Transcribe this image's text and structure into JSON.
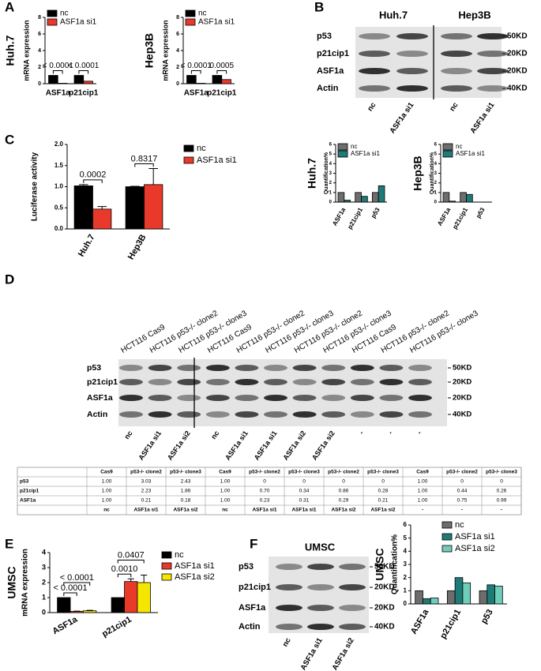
{
  "panels": [
    "A",
    "B",
    "C",
    "D",
    "E",
    "F"
  ],
  "chart_data": [
    {
      "type": "bar",
      "side_label": "Huh.7",
      "y_label": "mRNA expression",
      "categories": [
        "ASF1a",
        "p21cip1"
      ],
      "series": [
        {
          "name": "nc",
          "color": "#000000",
          "values": [
            1,
            1
          ]
        },
        {
          "name": "ASF1a si1",
          "color": "#e8392b",
          "values": [
            0.05,
            0.3
          ]
        }
      ],
      "annotations": [
        "< 0.0001",
        "< 0.0001"
      ],
      "ylim": [
        0,
        8
      ],
      "yticks": [
        0,
        2,
        4,
        6,
        8
      ]
    },
    {
      "type": "bar",
      "side_label": "Hep3B",
      "y_label": "mRNA expression",
      "categories": [
        "ASF1a",
        "p21cip1"
      ],
      "series": [
        {
          "name": "nc",
          "color": "#000000",
          "values": [
            1,
            1
          ]
        },
        {
          "name": "ASF1a si1",
          "color": "#e8392b",
          "values": [
            0.05,
            0.5
          ]
        }
      ],
      "annotations": [
        "< 0.0001",
        "0.0005"
      ],
      "ylim": [
        0,
        8
      ],
      "yticks": [
        0,
        2,
        4,
        6,
        8
      ]
    },
    {
      "type": "bar",
      "side_label": "Huh.7",
      "y_label": "Quantification%",
      "categories": [
        "ASF1a",
        "p21cip1",
        "p53"
      ],
      "series": [
        {
          "name": "nc",
          "color": "#6d6d6d",
          "values": [
            1,
            1,
            1
          ]
        },
        {
          "name": "ASF1a si1",
          "color": "#1e7b78",
          "values": [
            0.2,
            0.6,
            1.7
          ]
        }
      ],
      "ylim": [
        0,
        6
      ],
      "yticks": [
        0,
        1,
        2,
        3,
        4,
        5,
        6
      ]
    },
    {
      "type": "bar",
      "side_label": "Hep3B",
      "y_label": "Quantification%",
      "categories": [
        "ASF1a",
        "p21cip1",
        "p53"
      ],
      "series": [
        {
          "name": "nc",
          "color": "#6d6d6d",
          "values": [
            1,
            1,
            0
          ]
        },
        {
          "name": "ASF1a si1",
          "color": "#1e7b78",
          "values": [
            0.1,
            0.8,
            0
          ]
        }
      ],
      "ylim": [
        0,
        6
      ],
      "yticks": [
        0,
        1,
        2,
        3,
        4,
        5,
        6
      ]
    },
    {
      "type": "bar",
      "y_label": "Luciferase activity",
      "categories": [
        "Huh.7",
        "Hep3B"
      ],
      "series": [
        {
          "name": "nc",
          "color": "#000000",
          "values": [
            1.02,
            1.0
          ],
          "errors": [
            0.03,
            0.01
          ]
        },
        {
          "name": "ASF1a si1",
          "color": "#e8392b",
          "values": [
            0.47,
            1.05
          ],
          "errors": [
            0.06,
            0.38
          ]
        }
      ],
      "annotations": [
        "0.0002",
        "0.8317"
      ],
      "ylim": [
        0,
        2
      ],
      "yticks": [
        {
          "value": 0,
          "label": "0.0"
        },
        {
          "value": 0.5,
          "label": "0.5"
        },
        {
          "value": 1,
          "label": "1.0"
        },
        {
          "value": 1.5,
          "label": "1.5"
        },
        {
          "value": 2,
          "label": "2.0"
        }
      ]
    },
    {
      "type": "bar",
      "side_label": "UMSC",
      "y_label": "mRNA expression",
      "categories": [
        "ASF1a",
        "p21cip1"
      ],
      "series": [
        {
          "name": "nc",
          "color": "#000000",
          "values": [
            1,
            1
          ]
        },
        {
          "name": "ASF1a si1",
          "color": "#e8392b",
          "values": [
            0.08,
            2.07
          ],
          "errors": [
            0.02,
            0.18
          ]
        },
        {
          "name": "ASF1a si2",
          "color": "#f5e600",
          "values": [
            0.12,
            2.0
          ],
          "errors": [
            0.03,
            0.5
          ]
        }
      ],
      "annotations": [
        [
          "< 0.0001",
          "< 0.0001"
        ],
        [
          "0.0010",
          "0.0407"
        ]
      ],
      "ylim": [
        0,
        4
      ],
      "yticks": [
        0,
        1,
        2,
        3,
        4
      ]
    },
    {
      "type": "bar",
      "side_label": "UMSC",
      "y_label": "Quantification%",
      "categories": [
        "ASF1a",
        "p21cip1",
        "p53"
      ],
      "series": [
        {
          "name": "nc",
          "color": "#6d6d6d",
          "values": [
            1,
            1,
            1
          ]
        },
        {
          "name": "ASF1a si1",
          "color": "#1e7b78",
          "values": [
            0.4,
            2.0,
            1.45
          ]
        },
        {
          "name": "ASF1a si2",
          "color": "#6fcdb9",
          "values": [
            0.45,
            1.6,
            1.35
          ]
        }
      ],
      "ylim": [
        0,
        6
      ],
      "yticks": [
        0,
        1,
        2,
        3,
        4,
        5,
        6
      ]
    }
  ],
  "blot_B": {
    "headers": [
      "Huh.7",
      "Hep3B"
    ],
    "rows": [
      "p53",
      "p21cip1",
      "ASF1a",
      "Actin"
    ],
    "markers": [
      "50KD",
      "20KD",
      "20KD",
      "40KD"
    ],
    "lanes": [
      "nc",
      "ASF1a si1",
      "nc",
      "ASF1a si1"
    ]
  },
  "blot_D": {
    "headers": [
      "HCT116 Cas9",
      "HCT116 p53-/- clone2",
      "HCT116 p53-/- clone3",
      "HCT116 Cas9",
      "HCT116 p53-/- clone2",
      "HCT116 p53-/- clone3",
      "HCT116 p53-/- clone2",
      "HCT116 p53-/- clone3",
      "HCT116 Cas9",
      "HCT116 p53-/- clone2",
      "HCT116 p53-/- clone3"
    ],
    "rows": [
      "p53",
      "p21cip1",
      "ASF1a",
      "Actin"
    ],
    "markers": [
      "50KD",
      "20KD",
      "20KD",
      "40KD"
    ],
    "lanes": [
      "nc",
      "ASF1a si1",
      "ASF1a si2",
      "nc",
      "ASF1a si1",
      "ASF1a si1",
      "ASF1a si2",
      "ASF1a si2",
      "-",
      "-",
      "-"
    ]
  },
  "table": {
    "columns": [
      "Cas9",
      "p53-/- clone2",
      "p53-/- clone3",
      "Cas9",
      "p53-/- clone2",
      "p53-/- clone3",
      "p53-/- clone2",
      "p53-/- clone3",
      "Cas9",
      "p53-/- clone2",
      "p53-/- clone3"
    ],
    "rows": [
      {
        "label": "p53",
        "cells": [
          "1.00",
          "3.03",
          "2.43",
          "1.00",
          "0",
          "0",
          "0",
          "0",
          "1.00",
          "0",
          "0"
        ]
      },
      {
        "label": "p21cip1",
        "cells": [
          "1.00",
          "2.23",
          "1.86",
          "1.00",
          "0.70",
          "0.34",
          "0.86",
          "0.28",
          "1.00",
          "0.44",
          "0.26"
        ]
      },
      {
        "label": "ASF1a",
        "cells": [
          "1.00",
          "0.21",
          "0.18",
          "1.00",
          "0.23",
          "0.31",
          "0.29",
          "0.21",
          "1.00",
          "0.75",
          "0.99"
        ]
      }
    ],
    "footer": [
      "nc",
      "ASF1a si1",
      "ASF1a si2",
      "nc",
      "ASF1a si1",
      "ASF1a si1",
      "ASF1a si2",
      "ASF1a si2",
      "-",
      "-",
      "-"
    ]
  },
  "blot_F": {
    "title": "UMSC",
    "rows": [
      "p53",
      "p21cip1",
      "ASF1a",
      "Actin"
    ],
    "markers": [
      "50KD",
      "20KD",
      "20KD",
      "40KD"
    ],
    "lanes": [
      "nc",
      "ASF1a si1",
      "ASF1a si2"
    ]
  }
}
